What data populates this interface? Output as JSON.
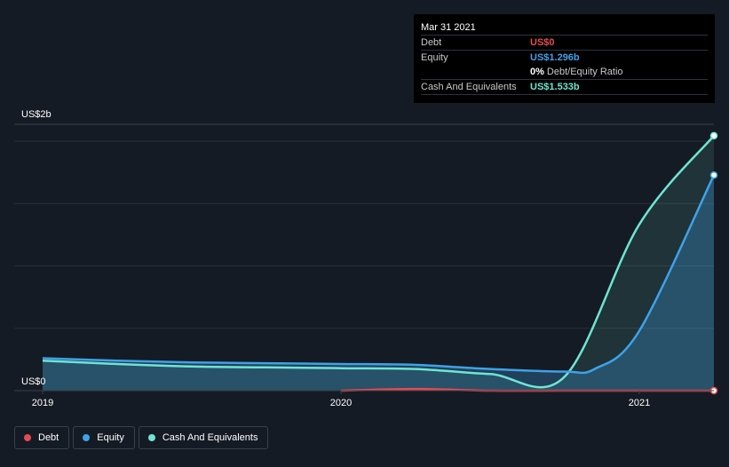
{
  "tooltip": {
    "date": "Mar 31 2021",
    "rows": [
      {
        "label": "Debt",
        "value": "US$0",
        "color": "#e64b53"
      },
      {
        "label": "Equity",
        "value": "US$1.296b",
        "color": "#3fa2e8"
      },
      {
        "ratio_pct": "0%",
        "ratio_label": "Debt/Equity Ratio"
      },
      {
        "label": "Cash And Equivalents",
        "value": "US$1.533b",
        "color": "#6ee5d2"
      }
    ]
  },
  "legend": [
    {
      "label": "Debt",
      "color": "#e64b53"
    },
    {
      "label": "Equity",
      "color": "#3fa2e8"
    },
    {
      "label": "Cash And Equivalents",
      "color": "#6ee5d2"
    }
  ],
  "chart_data": {
    "type": "area",
    "ylim": [
      0,
      1500000000
    ],
    "xlim": [
      2019.0,
      2021.25
    ],
    "y_tick_labels": [
      {
        "value": 1500000000,
        "label": "US$2b"
      },
      {
        "value": 0,
        "label": "US$0"
      }
    ],
    "x_tick_labels": [
      {
        "value": 2019.0,
        "label": "2019"
      },
      {
        "value": 2020.0,
        "label": "2020"
      },
      {
        "value": 2021.0,
        "label": "2021"
      }
    ],
    "grid": true,
    "series": [
      {
        "name": "Debt",
        "color": "#e64b53",
        "x": [
          2020.0,
          2020.25,
          2020.5,
          2020.75,
          2021.0,
          2021.25
        ],
        "y": [
          0,
          10000000,
          0,
          0,
          0,
          0
        ]
      },
      {
        "name": "Equity",
        "color": "#3fa2e8",
        "x": [
          2019.0,
          2019.25,
          2019.5,
          2019.75,
          2020.0,
          2020.25,
          2020.5,
          2020.75,
          2020.85,
          2021.0,
          2021.25
        ],
        "y": [
          195000000,
          180000000,
          170000000,
          165000000,
          160000000,
          155000000,
          130000000,
          115000000,
          130000000,
          360000000,
          1296000000
        ]
      },
      {
        "name": "Cash And Equivalents",
        "color": "#6ee5d2",
        "x": [
          2019.0,
          2019.25,
          2019.5,
          2019.75,
          2020.0,
          2020.25,
          2020.5,
          2020.75,
          2021.0,
          2021.25
        ],
        "y": [
          180000000,
          160000000,
          145000000,
          140000000,
          135000000,
          130000000,
          100000000,
          85000000,
          1000000000,
          1533000000
        ]
      }
    ]
  }
}
